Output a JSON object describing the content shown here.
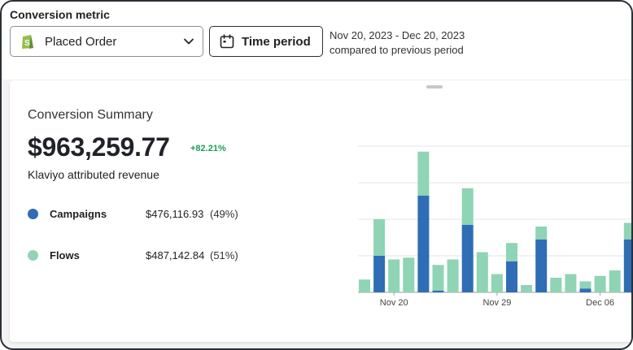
{
  "conversion_metric": {
    "label": "Conversion metric",
    "selected": "Placed Order",
    "icon": "shopify-icon"
  },
  "time_period": {
    "button_label": "Time period",
    "range": "Nov 20, 2023 - Dec 20, 2023",
    "comparison": "compared to previous period"
  },
  "summary": {
    "title": "Conversion Summary",
    "value": "$963,259.77",
    "change": "+82.21%",
    "subtitle": "Klaviyo attributed revenue",
    "rows": [
      {
        "name": "Campaigns",
        "amount": "$476,116.93",
        "pct": "(49%)",
        "color": "#2f6db5"
      },
      {
        "name": "Flows",
        "amount": "$487,142.84",
        "pct": "(51%)",
        "color": "#8fd4b4"
      }
    ]
  },
  "chart_data": {
    "type": "bar",
    "stacked": true,
    "ylim": [
      0,
      4
    ],
    "grid": true,
    "x_tick_labels": [
      {
        "label": "Nov 20",
        "index": 2
      },
      {
        "label": "Nov 29",
        "index": 9
      },
      {
        "label": "Dec 06",
        "index": 16
      }
    ],
    "series": [
      {
        "name": "Campaigns",
        "color": "#2f6db5",
        "values": [
          0,
          1.0,
          0,
          0,
          2.65,
          0.05,
          0,
          1.85,
          0,
          0,
          0.85,
          0,
          1.45,
          0,
          0,
          0.1,
          0,
          0,
          1.45
        ]
      },
      {
        "name": "Flows",
        "color": "#8fd4b4",
        "values": [
          0.35,
          1.0,
          0.9,
          0.95,
          1.2,
          0.7,
          0.9,
          1.0,
          1.1,
          0.5,
          0.5,
          0.2,
          0.35,
          0.4,
          0.5,
          0.2,
          0.45,
          0.6,
          0.45
        ]
      }
    ]
  }
}
